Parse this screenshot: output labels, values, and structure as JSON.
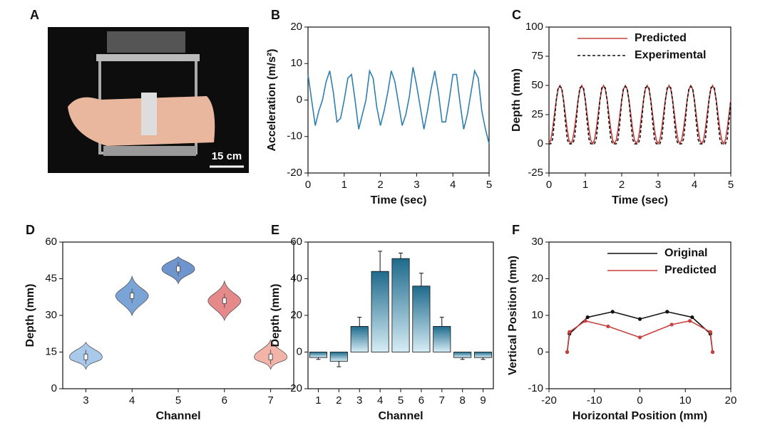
{
  "photo": {
    "panel": "A",
    "scale_bar": "15 cm"
  },
  "chart_data": [
    {
      "type": "line",
      "panel": "B",
      "xlabel": "Time (sec)",
      "ylabel": "Acceleration (m/s²)",
      "xlim": [
        0,
        5
      ],
      "ylim": [
        -20,
        20
      ],
      "xticks": [
        0,
        1,
        2,
        3,
        4,
        5
      ],
      "yticks": [
        -20,
        -10,
        0,
        10,
        20
      ],
      "x": [
        0,
        0.1,
        0.2,
        0.3,
        0.4,
        0.5,
        0.6,
        0.7,
        0.8,
        0.9,
        1,
        1.1,
        1.2,
        1.3,
        1.4,
        1.5,
        1.6,
        1.7,
        1.8,
        1.9,
        2,
        2.1,
        2.2,
        2.3,
        2.4,
        2.5,
        2.6,
        2.7,
        2.8,
        2.9,
        3,
        3.1,
        3.2,
        3.3,
        3.4,
        3.5,
        3.6,
        3.7,
        3.8,
        3.9,
        4,
        4.1,
        4.2,
        4.3,
        4.4,
        4.5,
        4.6,
        4.7,
        4.8,
        4.9,
        5
      ],
      "series": [
        {
          "color": "#2f7fb0",
          "values": [
            7,
            0,
            -7,
            -3,
            0,
            5,
            8,
            2,
            -6,
            -5,
            0,
            6,
            7,
            0,
            -8,
            -4,
            0,
            8,
            6,
            -2,
            -7,
            -3,
            2,
            8,
            5,
            -1,
            -7,
            -4,
            1,
            9,
            4,
            -2,
            -8,
            -3,
            3,
            8,
            2,
            -6,
            -6,
            0,
            7,
            7,
            -1,
            -8,
            -4,
            2,
            8,
            6,
            -3,
            -8,
            -12
          ]
        }
      ]
    },
    {
      "type": "line",
      "panel": "C",
      "xlabel": "Time (sec)",
      "ylabel": "Depth (mm)",
      "xlim": [
        0,
        5
      ],
      "ylim": [
        -25,
        100
      ],
      "xticks": [
        0,
        1,
        2,
        3,
        4,
        5
      ],
      "yticks": [
        -25,
        0,
        25,
        50,
        75,
        100
      ],
      "legend": "upper right",
      "x": [
        0,
        0.05,
        0.1,
        0.15,
        0.2,
        0.25,
        0.3,
        0.35,
        0.4,
        0.45,
        0.5,
        0.55,
        0.6,
        0.65,
        0.7,
        0.75,
        0.8,
        0.85,
        0.9,
        0.95,
        1,
        1.05,
        1.1,
        1.15,
        1.2,
        1.25,
        1.3,
        1.35,
        1.4,
        1.45,
        1.5,
        1.55,
        1.6,
        1.65,
        1.7,
        1.75,
        1.8,
        1.85,
        1.9,
        1.95,
        2,
        2.05,
        2.1,
        2.15,
        2.2,
        2.25,
        2.3,
        2.35,
        2.4,
        2.45,
        2.5,
        2.55,
        2.6,
        2.65,
        2.7,
        2.75,
        2.8,
        2.85,
        2.9,
        2.95,
        3,
        3.05,
        3.1,
        3.15,
        3.2,
        3.25,
        3.3,
        3.35,
        3.4,
        3.45,
        3.5,
        3.55,
        3.6,
        3.65,
        3.7,
        3.75,
        3.8,
        3.85,
        3.9,
        3.95,
        4,
        4.05,
        4.1,
        4.15,
        4.2,
        4.25,
        4.3,
        4.35,
        4.4,
        4.45,
        4.5,
        4.55,
        4.6,
        4.65,
        4.7,
        4.75,
        4.8,
        4.85,
        4.9,
        4.95,
        5
      ],
      "series": [
        {
          "name": "Predicted",
          "color": "#c8413f",
          "dashed": false,
          "values": [
            0,
            3.3,
            12.5,
            25,
            37.5,
            46.7,
            50,
            46.7,
            37.5,
            25,
            12.5,
            3.3,
            0,
            3.3,
            12.5,
            25,
            37.5,
            46.7,
            50,
            46.7,
            37.5,
            25,
            12.5,
            3.3,
            0,
            3.3,
            12.5,
            25,
            37.5,
            46.7,
            50,
            46.7,
            37.5,
            25,
            12.5,
            3.3,
            0,
            3.3,
            12.5,
            25,
            37.5,
            46.7,
            50,
            46.7,
            37.5,
            25,
            12.5,
            3.3,
            0,
            3.3,
            12.5,
            25,
            37.5,
            46.7,
            50,
            46.7,
            37.5,
            25,
            12.5,
            3.3,
            0,
            3.3,
            12.5,
            25,
            37.5,
            46.7,
            50,
            46.7,
            37.5,
            25,
            12.5,
            3.3,
            0,
            3.3,
            12.5,
            25,
            37.5,
            46.7,
            50,
            46.7,
            37.5,
            25,
            12.5,
            3.3,
            0,
            3.3,
            12.5,
            25,
            37.5,
            46.7,
            50,
            46.7,
            37.5,
            25,
            12.5,
            3.3,
            0,
            3.3,
            12.5,
            25,
            37.5
          ]
        },
        {
          "name": "Experimental",
          "color": "#111111",
          "dashed": true,
          "values": [
            0,
            0,
            4,
            19,
            37,
            48,
            49,
            48,
            37,
            19,
            4,
            0,
            0,
            0,
            4,
            19,
            37,
            48,
            49,
            48,
            37,
            19,
            4,
            0,
            0,
            0,
            4,
            19,
            37,
            48,
            49,
            48,
            37,
            19,
            4,
            0,
            0,
            0,
            4,
            19,
            37,
            48,
            49,
            48,
            37,
            19,
            4,
            0,
            0,
            0,
            4,
            19,
            37,
            48,
            49,
            48,
            37,
            19,
            4,
            0,
            0,
            0,
            4,
            19,
            37,
            48,
            49,
            48,
            37,
            19,
            4,
            0,
            0,
            0,
            4,
            19,
            37,
            48,
            49,
            48,
            37,
            19,
            4,
            0,
            0,
            0,
            4,
            19,
            37,
            48,
            49,
            48,
            37,
            19,
            4,
            0,
            0,
            0,
            4,
            19,
            37
          ]
        }
      ]
    },
    {
      "type": "violin",
      "panel": "D",
      "xlabel": "Channel",
      "ylabel": "Depth (mm)",
      "ylim": [
        0,
        60
      ],
      "yticks": [
        0,
        15,
        30,
        45,
        60
      ],
      "categories": [
        "3",
        "4",
        "5",
        "6",
        "7"
      ],
      "values": [
        13,
        38,
        49,
        36,
        13
      ],
      "min": [
        8,
        30,
        43,
        28,
        8
      ],
      "max": [
        19,
        46,
        54,
        44,
        20
      ],
      "colors": [
        "#a9c9ea",
        "#7aa3d6",
        "#6f95cf",
        "#e5898a",
        "#f2b3a8"
      ]
    },
    {
      "type": "bar",
      "panel": "E",
      "xlabel": "Channel",
      "ylabel": "Depth (mm)",
      "ylim": [
        -20,
        60
      ],
      "yticks": [
        -20,
        0,
        20,
        40,
        60
      ],
      "categories": [
        "1",
        "2",
        "3",
        "4",
        "5",
        "6",
        "7",
        "8",
        "9"
      ],
      "values": [
        -3,
        -5,
        14,
        44,
        51,
        36,
        14,
        -3,
        -3
      ],
      "errors": [
        1,
        3,
        5,
        11,
        3,
        7,
        5,
        1,
        1
      ],
      "color": "#1e6a8c"
    },
    {
      "type": "line",
      "panel": "F",
      "xlabel": "Horizontal Position (mm)",
      "ylabel": "Vertical Position (mm)",
      "xlim": [
        -20,
        20
      ],
      "ylim": [
        -10,
        30
      ],
      "xticks": [
        -20,
        -10,
        0,
        10,
        20
      ],
      "yticks": [
        -10,
        0,
        10,
        20,
        30
      ],
      "legend": "upper right",
      "markers": true,
      "series": [
        {
          "name": "Original",
          "color": "#111111",
          "dashed": false,
          "x": [
            -16,
            -15.5,
            -11.5,
            -6,
            0,
            6,
            11.5,
            15.5,
            16
          ],
          "values": [
            0,
            5,
            9.5,
            11,
            9,
            11,
            9.5,
            5,
            0
          ]
        },
        {
          "name": "Predicted",
          "color": "#c8413f",
          "dashed": false,
          "x": [
            -16,
            -15.5,
            -12,
            -7,
            0,
            7,
            11,
            15.5,
            16
          ],
          "values": [
            0,
            5.5,
            8.5,
            7,
            4,
            7.5,
            8.5,
            5.5,
            0
          ]
        }
      ]
    }
  ]
}
